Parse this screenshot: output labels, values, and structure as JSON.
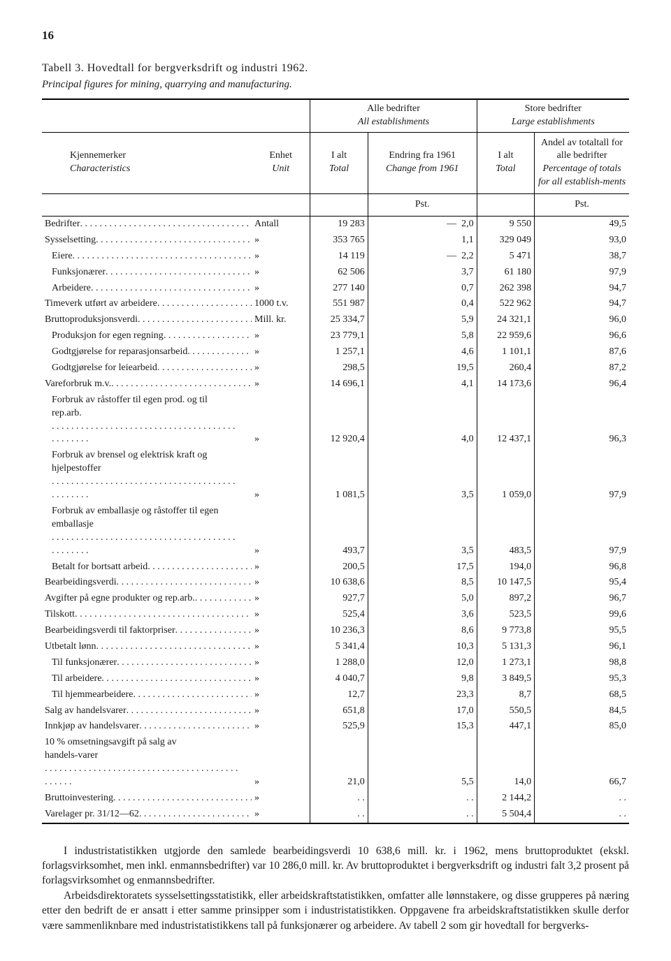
{
  "page_number": "16",
  "title": "Tabell 3. Hovedtall for bergverksdrift og industri 1962.",
  "subtitle": "Principal figures for mining, quarrying and manufacturing.",
  "header": {
    "group_all": "Alle bedrifter",
    "group_all_it": "All establishments",
    "group_large": "Store bedrifter",
    "group_large_it": "Large establishments",
    "char": "Kjennemerker",
    "char_it": "Characteristics",
    "unit": "Enhet",
    "unit_it": "Unit",
    "ialt": "I alt",
    "ialt_it": "Total",
    "change": "Endring fra 1961",
    "change_it": "Change from 1961",
    "ialt2": "I alt",
    "ialt2_it": "Total",
    "pct": "Andel av totaltall for alle bedrifter",
    "pct_it": "Percentage of totals for all establish-ments",
    "pst": "Pst.",
    "pst2": "Pst."
  },
  "rows": [
    {
      "label": "Bedrifter",
      "unit": "Antall",
      "c1": "19 283",
      "c2_neg": true,
      "c2": "2,0",
      "c3": "9 550",
      "c4": "49,5",
      "indent": 0
    },
    {
      "label": "Sysselsetting",
      "unit": "»",
      "c1": "353 765",
      "c2": "1,1",
      "c3": "329 049",
      "c4": "93,0",
      "indent": 0
    },
    {
      "label": "Eiere",
      "unit": "»",
      "c1": "14 119",
      "c2_neg": true,
      "c2": "2,2",
      "c3": "5 471",
      "c4": "38,7",
      "indent": 1
    },
    {
      "label": "Funksjonærer",
      "unit": "»",
      "c1": "62 506",
      "c2": "3,7",
      "c3": "61 180",
      "c4": "97,9",
      "indent": 1
    },
    {
      "label": "Arbeidere",
      "unit": "»",
      "c1": "277 140",
      "c2": "0,7",
      "c3": "262 398",
      "c4": "94,7",
      "indent": 1
    },
    {
      "label": "Timeverk utført av arbeidere",
      "unit": "1000 t.v.",
      "c1": "551 987",
      "c2": "0,4",
      "c3": "522 962",
      "c4": "94,7",
      "indent": 0
    },
    {
      "label": "Bruttoproduksjonsverdi",
      "unit": "Mill. kr.",
      "c1": "25 334,7",
      "c2": "5,9",
      "c3": "24 321,1",
      "c4": "96,0",
      "indent": 0
    },
    {
      "label": "Produksjon for egen regning",
      "unit": "»",
      "c1": "23 779,1",
      "c2": "5,8",
      "c3": "22 959,6",
      "c4": "96,6",
      "indent": 1
    },
    {
      "label": "Godtgjørelse for reparasjonsarbeid",
      "unit": "»",
      "c1": "1 257,1",
      "c2": "4,6",
      "c3": "1 101,1",
      "c4": "87,6",
      "indent": 1
    },
    {
      "label": "Godtgjørelse for leiearbeid",
      "unit": "»",
      "c1": "298,5",
      "c2": "19,5",
      "c3": "260,4",
      "c4": "87,2",
      "indent": 1
    },
    {
      "label": "Vareforbruk m.v.",
      "unit": "»",
      "c1": "14 696,1",
      "c2": "4,1",
      "c3": "14 173,6",
      "c4": "96,4",
      "indent": 0
    },
    {
      "label": "Forbruk av råstoffer til egen prod. og til rep.arb.",
      "unit": "»",
      "c1": "12 920,4",
      "c2": "4,0",
      "c3": "12 437,1",
      "c4": "96,3",
      "indent": 1,
      "wrap": true
    },
    {
      "label": "Forbruk av brensel og elektrisk kraft og hjelpestoffer",
      "unit": "»",
      "c1": "1 081,5",
      "c2": "3,5",
      "c3": "1 059,0",
      "c4": "97,9",
      "indent": 1,
      "wrap": true
    },
    {
      "label": "Forbruk av emballasje og råstoffer til egen emballasje",
      "unit": "»",
      "c1": "493,7",
      "c2": "3,5",
      "c3": "483,5",
      "c4": "97,9",
      "indent": 1,
      "wrap": true
    },
    {
      "label": "Betalt for bortsatt arbeid",
      "unit": "»",
      "c1": "200,5",
      "c2": "17,5",
      "c3": "194,0",
      "c4": "96,8",
      "indent": 1
    },
    {
      "label": "Bearbeidingsverdi",
      "unit": "»",
      "c1": "10 638,6",
      "c2": "8,5",
      "c3": "10 147,5",
      "c4": "95,4",
      "indent": 0
    },
    {
      "label": "Avgifter på egne produkter og rep.arb.",
      "unit": "»",
      "c1": "927,7",
      "c2": "5,0",
      "c3": "897,2",
      "c4": "96,7",
      "indent": 0
    },
    {
      "label": "Tilskott",
      "unit": "»",
      "c1": "525,4",
      "c2": "3,6",
      "c3": "523,5",
      "c4": "99,6",
      "indent": 0
    },
    {
      "label": "Bearbeidingsverdi til faktorpriser",
      "unit": "»",
      "c1": "10 236,3",
      "c2": "8,6",
      "c3": "9 773,8",
      "c4": "95,5",
      "indent": 0
    },
    {
      "label": "Utbetalt lønn",
      "unit": "»",
      "c1": "5 341,4",
      "c2": "10,3",
      "c3": "5 131,3",
      "c4": "96,1",
      "indent": 0
    },
    {
      "label": "Til funksjonærer",
      "unit": "»",
      "c1": "1 288,0",
      "c2": "12,0",
      "c3": "1 273,1",
      "c4": "98,8",
      "indent": 1
    },
    {
      "label": "Til arbeidere",
      "unit": "»",
      "c1": "4 040,7",
      "c2": "9,8",
      "c3": "3 849,5",
      "c4": "95,3",
      "indent": 1
    },
    {
      "label": "Til hjemmearbeidere",
      "unit": "»",
      "c1": "12,7",
      "c2": "23,3",
      "c3": "8,7",
      "c4": "68,5",
      "indent": 1
    },
    {
      "label": "Salg av handelsvarer",
      "unit": "»",
      "c1": "651,8",
      "c2": "17,0",
      "c3": "550,5",
      "c4": "84,5",
      "indent": 0
    },
    {
      "label": "Innkjøp av handelsvarer",
      "unit": "»",
      "c1": "525,9",
      "c2": "15,3",
      "c3": "447,1",
      "c4": "85,0",
      "indent": 0
    },
    {
      "label": "10 % omsetningsavgift på salg av handels-varer",
      "unit": "»",
      "c1": "21,0",
      "c2": "5,5",
      "c3": "14,0",
      "c4": "66,7",
      "indent": 0,
      "wrap": true
    },
    {
      "label": "Bruttoinvestering",
      "unit": "»",
      "c1": ". .",
      "c2": ". .",
      "c3": "2 144,2",
      "c4": ". .",
      "indent": 0
    },
    {
      "label": "Varelager pr. 31/12—62",
      "unit": "»",
      "c1": ". .",
      "c2": ". .",
      "c3": "5 504,4",
      "c4": ". .",
      "indent": 0
    }
  ],
  "body_paragraphs": [
    "I industristatistikken utgjorde den samlede bearbeidingsverdi 10 638,6 mill. kr. i 1962, mens bruttoproduktet (ekskl. forlagsvirksomhet, men inkl. enmannsbedrifter) var 10 286,0 mill. kr. Av bruttoproduktet i bergverksdrift og industri falt 3,2 prosent på forlagsvirksomhet og enmannsbedrifter.",
    "Arbeidsdirektoratets sysselsettingsstatistikk, eller arbeidskraftstatistikken, omfatter alle lønnstakere, og disse grupperes på næring etter den bedrift de er ansatt i etter samme prinsipper som i industristatistikken. Oppgavene fra arbeidskraftstatistikken skulle derfor være sammenliknbare med industristatistikkens tall på funksjonærer og arbeidere. Av tabell 2 som gir hovedtall for bergverks-"
  ]
}
